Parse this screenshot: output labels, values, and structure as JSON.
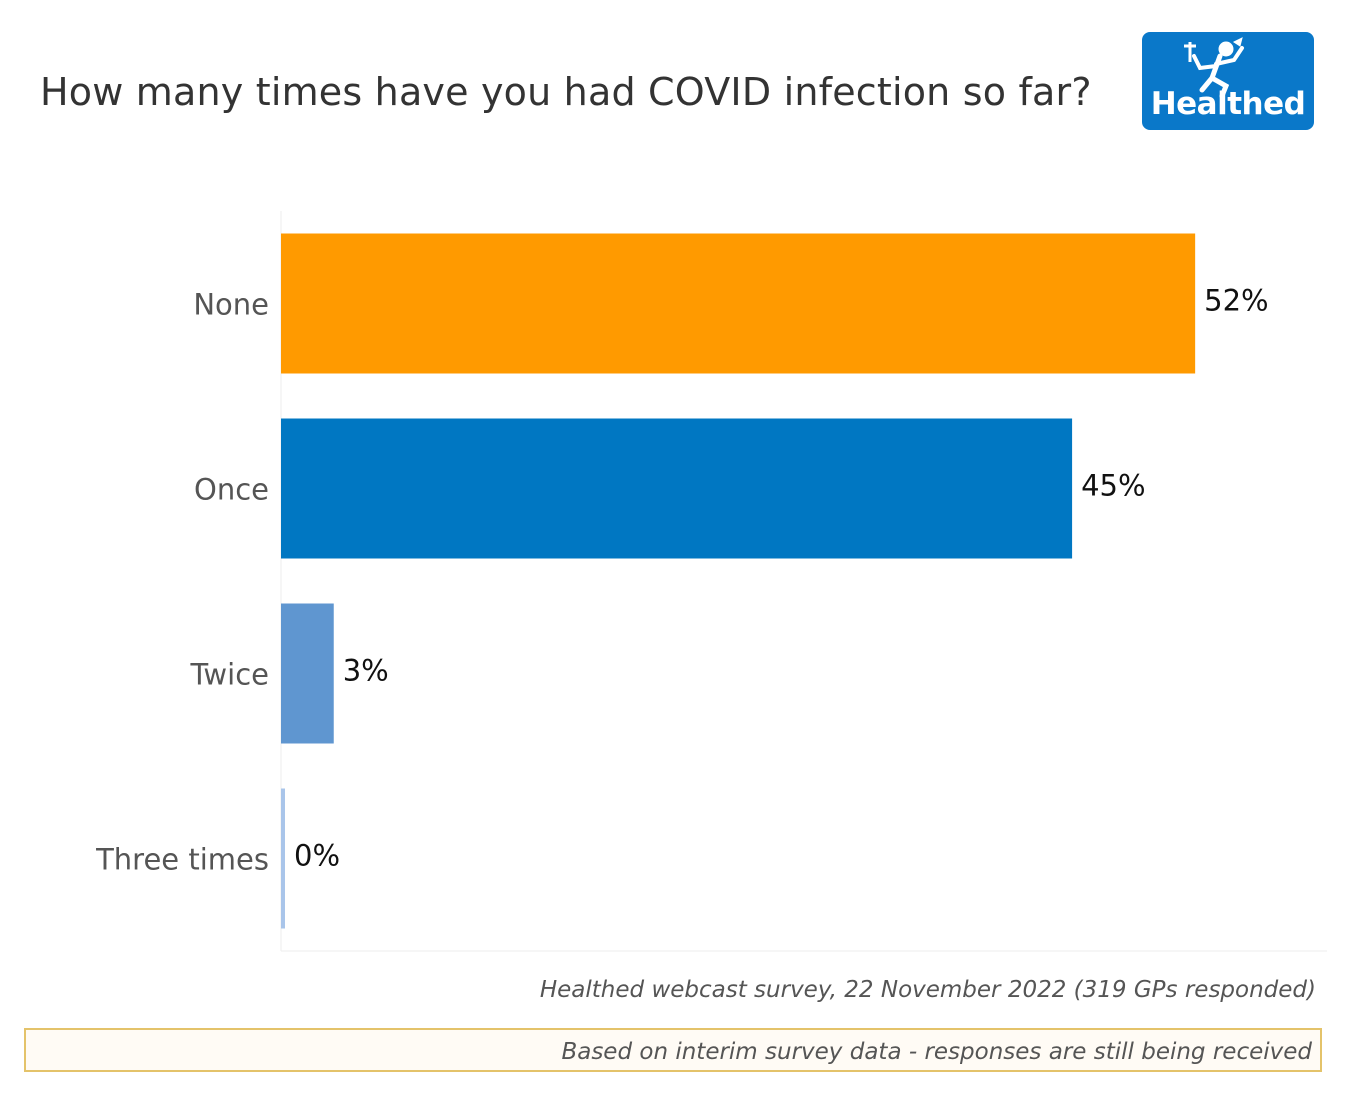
{
  "chart_data": {
    "type": "bar",
    "orientation": "horizontal",
    "title": "How many times have you had COVID infection so far?",
    "categories": [
      "None",
      "Once",
      "Twice",
      "Three times"
    ],
    "values": [
      52,
      45,
      3,
      0
    ],
    "value_labels": [
      "52%",
      "45%",
      "3%",
      "0%"
    ],
    "colors": [
      "#ff9a00",
      "#0077c2",
      "#5f96d0",
      "#a9c5ea"
    ],
    "xlim": [
      0,
      59.5
    ],
    "xlabel": "",
    "ylabel": "",
    "grid": false
  },
  "logo": {
    "text": "Healthed",
    "icon": "runner-icon"
  },
  "source": "Healthed webcast survey, 22 November 2022 (319 GPs responded)",
  "note": "Based on interim survey data - responses are still being received"
}
